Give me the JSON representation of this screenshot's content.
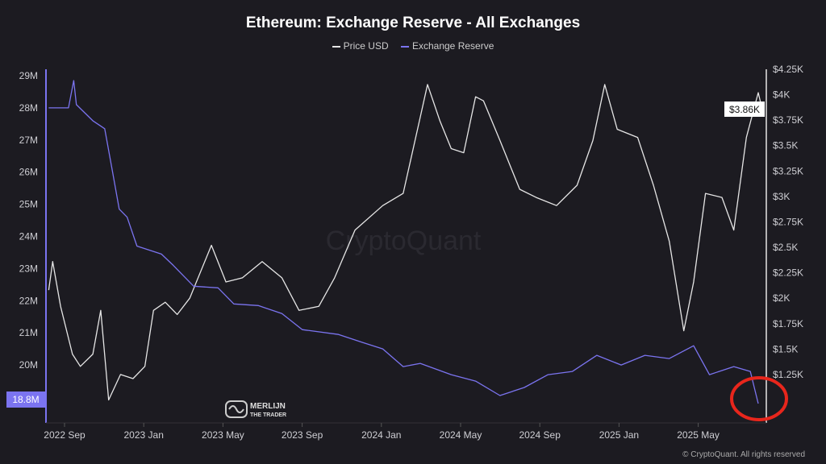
{
  "chart_data": {
    "type": "line",
    "title": "Ethereum: Exchange Reserve - All Exchanges",
    "legend_position": "top",
    "grid": false,
    "watermark": "CryptoQuant",
    "logo": "MERLIJN THE TRADER",
    "footer": "© CryptoQuant. All rights reserved",
    "x_ticks": [
      "2022 Sep",
      "2023 Jan",
      "2023 May",
      "2023 Sep",
      "2024 Jan",
      "2024 May",
      "2024 Sep",
      "2025 Jan",
      "2025 May"
    ],
    "y_left": {
      "ticks": [
        "29M",
        "28M",
        "27M",
        "26M",
        "25M",
        "24M",
        "23M",
        "22M",
        "21M",
        "20M"
      ],
      "range_millions": [
        18.5,
        29.1
      ],
      "current_label": "18.8M"
    },
    "y_right": {
      "ticks": [
        "$4.25K",
        "$4K",
        "$3.75K",
        "$3.5K",
        "$3.25K",
        "$3K",
        "$2.75K",
        "$2.5K",
        "$2.25K",
        "$2K",
        "$1.75K",
        "$1.5K",
        "$1.25K"
      ],
      "range_thousands_usd": [
        0.8,
        4.3
      ],
      "current_label": "$3.86K"
    },
    "series": [
      {
        "name": "Price USD",
        "color": "#e6e6e6",
        "unit": "thousand USD",
        "axis": "right",
        "points": [
          [
            "2022-08-07",
            2.08
          ],
          [
            "2022-08-13",
            2.36
          ],
          [
            "2022-08-25",
            1.92
          ],
          [
            "2022-09-13",
            1.45
          ],
          [
            "2022-09-25",
            1.33
          ],
          [
            "2022-10-14",
            1.45
          ],
          [
            "2022-10-26",
            1.88
          ],
          [
            "2022-11-08",
            1.0
          ],
          [
            "2022-11-26",
            1.25
          ],
          [
            "2022-12-15",
            1.21
          ],
          [
            "2023-01-03",
            1.33
          ],
          [
            "2023-01-16",
            1.88
          ],
          [
            "2023-02-04",
            1.96
          ],
          [
            "2023-02-22",
            1.84
          ],
          [
            "2023-03-11",
            2.0
          ],
          [
            "2023-04-14",
            2.52
          ],
          [
            "2023-05-06",
            2.16
          ],
          [
            "2023-05-31",
            2.2
          ],
          [
            "2023-07-01",
            2.36
          ],
          [
            "2023-08-01",
            2.2
          ],
          [
            "2023-08-27",
            1.88
          ],
          [
            "2023-09-27",
            1.92
          ],
          [
            "2023-10-21",
            2.2
          ],
          [
            "2023-11-22",
            2.67
          ],
          [
            "2024-01-04",
            2.91
          ],
          [
            "2024-02-05",
            3.03
          ],
          [
            "2024-03-01",
            3.78
          ],
          [
            "2024-03-12",
            4.1
          ],
          [
            "2024-03-31",
            3.74
          ],
          [
            "2024-04-18",
            3.47
          ],
          [
            "2024-05-07",
            3.43
          ],
          [
            "2024-05-25",
            3.98
          ],
          [
            "2024-06-07",
            3.94
          ],
          [
            "2024-07-02",
            3.55
          ],
          [
            "2024-08-02",
            3.07
          ],
          [
            "2024-08-27",
            2.99
          ],
          [
            "2024-09-28",
            2.91
          ],
          [
            "2024-10-29",
            3.11
          ],
          [
            "2024-11-23",
            3.55
          ],
          [
            "2024-12-11",
            4.1
          ],
          [
            "2024-12-30",
            3.66
          ],
          [
            "2025-01-31",
            3.58
          ],
          [
            "2025-02-25",
            3.11
          ],
          [
            "2025-03-19",
            2.56
          ],
          [
            "2025-04-11",
            1.68
          ],
          [
            "2025-04-26",
            2.16
          ],
          [
            "2025-05-14",
            3.03
          ],
          [
            "2025-06-09",
            2.99
          ],
          [
            "2025-06-27",
            2.67
          ],
          [
            "2025-07-16",
            3.58
          ],
          [
            "2025-08-04",
            4.02
          ],
          [
            "2025-08-10",
            3.86
          ]
        ]
      },
      {
        "name": "Exchange Reserve",
        "color": "#7b74f0",
        "unit": "million ETH",
        "axis": "left",
        "points": [
          [
            "2022-08-07",
            28.0
          ],
          [
            "2022-09-07",
            28.0
          ],
          [
            "2022-09-15",
            28.85
          ],
          [
            "2022-09-19",
            28.1
          ],
          [
            "2022-10-14",
            27.6
          ],
          [
            "2022-11-02",
            27.35
          ],
          [
            "2022-11-14",
            26.0
          ],
          [
            "2022-11-24",
            24.85
          ],
          [
            "2022-12-06",
            24.6
          ],
          [
            "2022-12-21",
            23.7
          ],
          [
            "2023-01-28",
            23.45
          ],
          [
            "2023-02-16",
            23.1
          ],
          [
            "2023-03-17",
            22.45
          ],
          [
            "2023-04-24",
            22.4
          ],
          [
            "2023-05-18",
            21.9
          ],
          [
            "2023-06-25",
            21.85
          ],
          [
            "2023-08-01",
            21.6
          ],
          [
            "2023-09-02",
            21.1
          ],
          [
            "2023-10-27",
            20.95
          ],
          [
            "2023-12-04",
            20.7
          ],
          [
            "2024-01-04",
            20.5
          ],
          [
            "2024-02-05",
            19.95
          ],
          [
            "2024-03-01",
            20.05
          ],
          [
            "2024-04-18",
            19.7
          ],
          [
            "2024-05-25",
            19.5
          ],
          [
            "2024-07-02",
            19.05
          ],
          [
            "2024-08-09",
            19.3
          ],
          [
            "2024-09-15",
            19.7
          ],
          [
            "2024-10-22",
            19.8
          ],
          [
            "2024-11-29",
            20.3
          ],
          [
            "2025-01-06",
            20.0
          ],
          [
            "2025-02-12",
            20.3
          ],
          [
            "2025-03-19",
            20.2
          ],
          [
            "2025-04-26",
            20.6
          ],
          [
            "2025-05-20",
            19.7
          ],
          [
            "2025-06-27",
            19.95
          ],
          [
            "2025-07-22",
            19.8
          ],
          [
            "2025-08-04",
            18.8
          ]
        ]
      }
    ]
  },
  "annotation": {
    "type": "circle",
    "color": "#e8261c"
  }
}
